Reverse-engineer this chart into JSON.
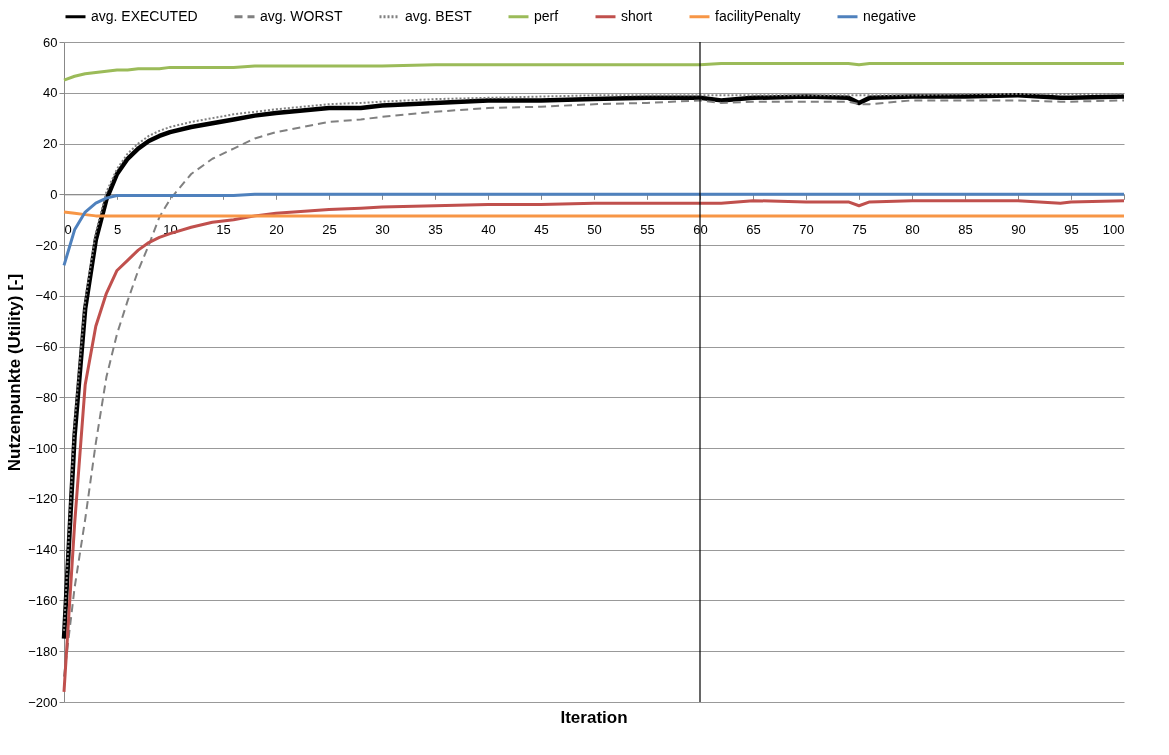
{
  "chart_data": {
    "type": "line",
    "xlabel": "Iteration",
    "ylabel": "Nutzenpunkte (Utility) [-]",
    "x": [
      0,
      1,
      2,
      3,
      4,
      5,
      6,
      7,
      8,
      9,
      10,
      12,
      14,
      16,
      18,
      20,
      25,
      28,
      30,
      35,
      40,
      45,
      50,
      55,
      60,
      62,
      65,
      70,
      74,
      75,
      76,
      80,
      85,
      90,
      94,
      95,
      100
    ],
    "series": [
      {
        "name": "avg. EXECUTED",
        "color": "#000000",
        "line_style": "solid",
        "values": [
          -175,
          -95,
          -45,
          -18,
          -2,
          8,
          14,
          18,
          21,
          23,
          24.5,
          26.5,
          28,
          29.5,
          31,
          32,
          34,
          34,
          35,
          36,
          37,
          37,
          37.5,
          38,
          38,
          37,
          38,
          38.5,
          38,
          36,
          38,
          38.5,
          38.5,
          39,
          38,
          38,
          38.5
        ]
      },
      {
        "name": "avg. WORST",
        "color": "#808080",
        "line_style": "dashed",
        "values": [
          -190,
          -155,
          -128,
          -98,
          -72,
          -55,
          -42,
          -30,
          -20,
          -9,
          -2,
          8,
          14,
          18,
          22,
          24.5,
          28.5,
          29.5,
          30.5,
          32.5,
          34,
          34.5,
          35.5,
          36,
          37,
          36,
          36.5,
          36.5,
          36.5,
          35.5,
          35.5,
          37,
          37,
          37,
          36.5,
          36.5,
          37
        ]
      },
      {
        "name": "avg. BEST",
        "color": "#808080",
        "line_style": "dotted",
        "values": [
          -172,
          -90,
          -42,
          -15,
          1,
          10,
          16,
          20,
          23,
          25,
          26.5,
          28.5,
          30,
          31.5,
          32.5,
          33.5,
          35.5,
          36,
          36.5,
          37.5,
          38,
          38.5,
          39,
          39,
          39,
          39,
          39,
          39,
          39,
          39,
          39,
          39,
          39.5,
          39.5,
          39.5,
          39.5,
          39.5
        ]
      },
      {
        "name": "perf",
        "color": "#9bbb59",
        "line_style": "solid",
        "values": [
          45,
          46.5,
          47.5,
          48,
          48.5,
          49,
          49,
          49.5,
          49.5,
          49.5,
          50,
          50,
          50,
          50,
          50.5,
          50.5,
          50.5,
          50.5,
          50.5,
          51,
          51,
          51,
          51,
          51,
          51,
          51.5,
          51.5,
          51.5,
          51.5,
          51,
          51.5,
          51.5,
          51.5,
          51.5,
          51.5,
          51.5,
          51.5
        ]
      },
      {
        "name": "short",
        "color": "#c0504d",
        "line_style": "solid",
        "values": [
          -196,
          -130,
          -75,
          -52,
          -39,
          -30,
          -26,
          -22,
          -19,
          -17,
          -15.5,
          -13,
          -11,
          -10,
          -8.5,
          -7.5,
          -6,
          -5.5,
          -5,
          -4.5,
          -4,
          -4,
          -3.5,
          -3.5,
          -3.5,
          -3.5,
          -2.5,
          -3,
          -3,
          -4.5,
          -3,
          -2.5,
          -2.5,
          -2.5,
          -3.5,
          -3,
          -2.5
        ]
      },
      {
        "name": "facilityPenalty",
        "color": "#f79646",
        "line_style": "solid",
        "values": [
          -7,
          -7.5,
          -8,
          -8.5,
          -8.5,
          -8.5,
          -8.5,
          -8.5,
          -8.5,
          -8.5,
          -8.5,
          -8.5,
          -8.5,
          -8.5,
          -8.5,
          -8.5,
          -8.5,
          -8.5,
          -8.5,
          -8.5,
          -8.5,
          -8.5,
          -8.5,
          -8.5,
          -8.5,
          -8.5,
          -8.5,
          -8.5,
          -8.5,
          -8.5,
          -8.5,
          -8.5,
          -8.5,
          -8.5,
          -8.5,
          -8.5,
          -8.5
        ]
      },
      {
        "name": "negative",
        "color": "#4f81bd",
        "line_style": "solid",
        "values": [
          -28,
          -14,
          -7,
          -3.5,
          -1.5,
          -0.5,
          -0.5,
          -0.5,
          -0.5,
          -0.5,
          -0.5,
          -0.5,
          -0.5,
          -0.5,
          0,
          0,
          0,
          0,
          0,
          0,
          0,
          0,
          0,
          0,
          0,
          0,
          0,
          0,
          0,
          0,
          0,
          0,
          0,
          0,
          0,
          0,
          0
        ]
      }
    ],
    "xlim": [
      0,
      100
    ],
    "xticks": [
      0,
      5,
      10,
      15,
      20,
      25,
      30,
      35,
      40,
      45,
      50,
      55,
      60,
      65,
      70,
      75,
      80,
      85,
      90,
      95,
      100
    ],
    "ylim": [
      -200,
      60
    ],
    "yticks": [
      -200,
      -180,
      -160,
      -140,
      -120,
      -100,
      -80,
      -60,
      -40,
      -20,
      0,
      20,
      40,
      60
    ],
    "grid": "y",
    "legend": "top",
    "ref_lines": [
      {
        "axis": "x",
        "value": 60,
        "color": "#000000"
      }
    ]
  }
}
